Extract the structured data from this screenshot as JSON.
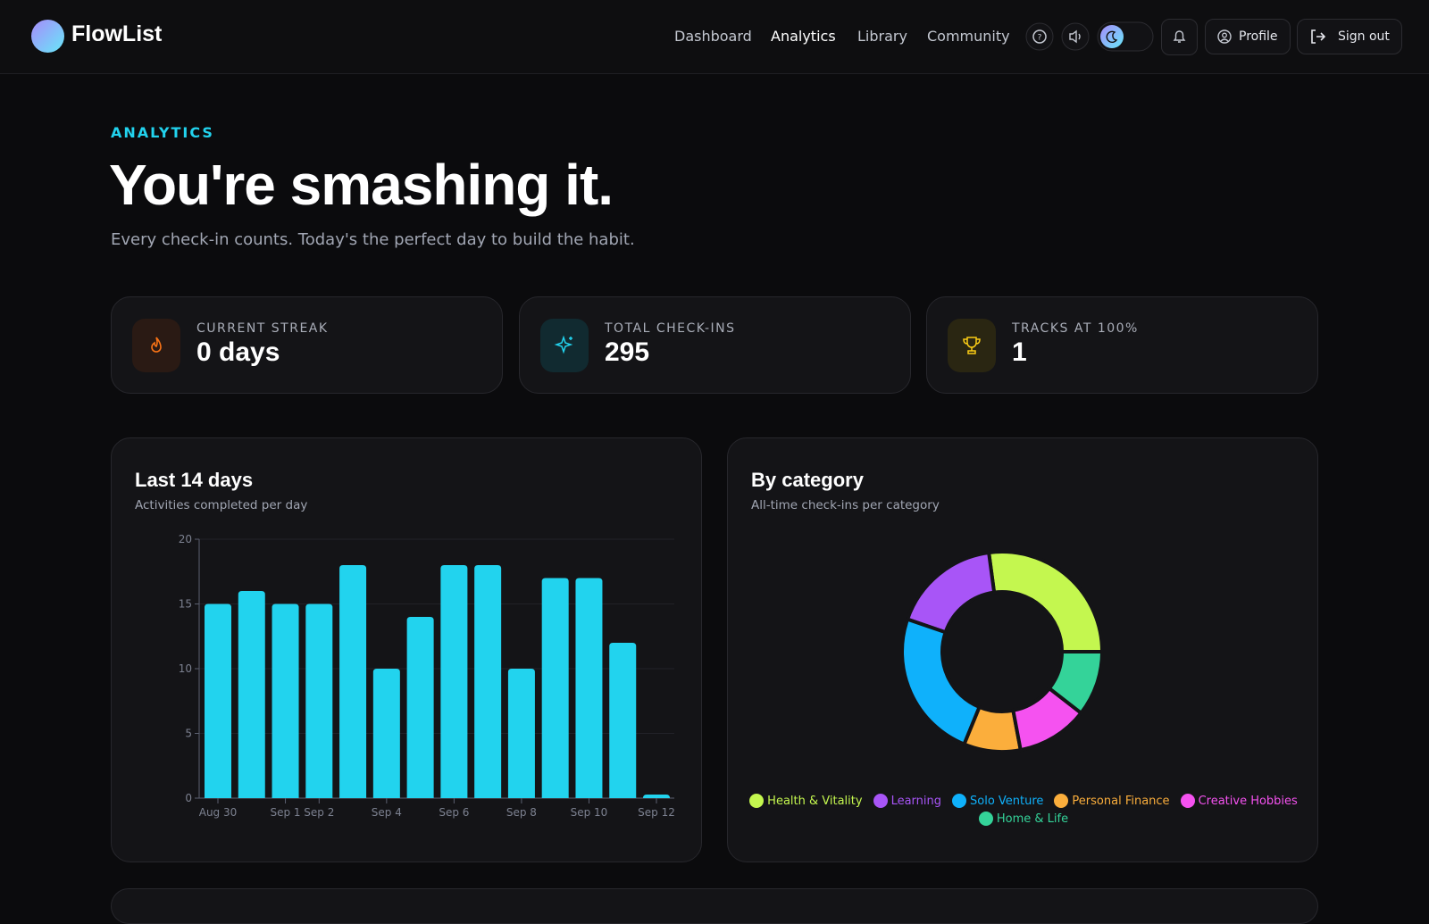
{
  "brand": "FlowList",
  "nav": [
    "Dashboard",
    "Analytics",
    "Library",
    "Community"
  ],
  "actions": {
    "profile": "Profile",
    "sign_out": "Sign out"
  },
  "header": {
    "eyebrow": "ANALYTICS",
    "title": "You're smashing it.",
    "subtitle": "Every check-in counts. Today's the perfect day to build the habit."
  },
  "stats": [
    {
      "label": "CURRENT STREAK",
      "value": "0 days"
    },
    {
      "label": "TOTAL CHECK-INS",
      "value": 295
    },
    {
      "label": "TRACKS AT 100%",
      "value": 1
    }
  ],
  "chart_data": [
    {
      "type": "bar",
      "title": "Last 14 days",
      "subtitle": "Activities completed per day",
      "categories": [
        "Aug 30",
        null,
        "Sep 1",
        "Sep 2",
        null,
        "Sep 4",
        null,
        "Sep 6",
        null,
        "Sep 8",
        null,
        "Sep 10",
        null,
        "Sep 12"
      ],
      "values": [
        15,
        16,
        15,
        15,
        18,
        10,
        14,
        18,
        18,
        10,
        17,
        17,
        12,
        0
      ],
      "color": "#22d3ee",
      "ylim": [
        0,
        20
      ],
      "yticks": [
        0,
        5,
        10,
        15,
        20
      ],
      "grid": true
    },
    {
      "type": "pie",
      "title": "By category",
      "subtitle": "All-time check-ins per category",
      "categories": [
        "Health & Vitality",
        "Learning",
        "Solo Venture",
        "Personal Finance",
        "Creative Hobbies",
        "Home & Life"
      ],
      "values": [
        80,
        52,
        71,
        27,
        34,
        31
      ],
      "colors": [
        "#c4f74f",
        "#a855f7",
        "#0fb1fb",
        "#fbae3c",
        "#f552f0",
        "#34d399"
      ],
      "donut": true,
      "legend": "bottom"
    }
  ]
}
